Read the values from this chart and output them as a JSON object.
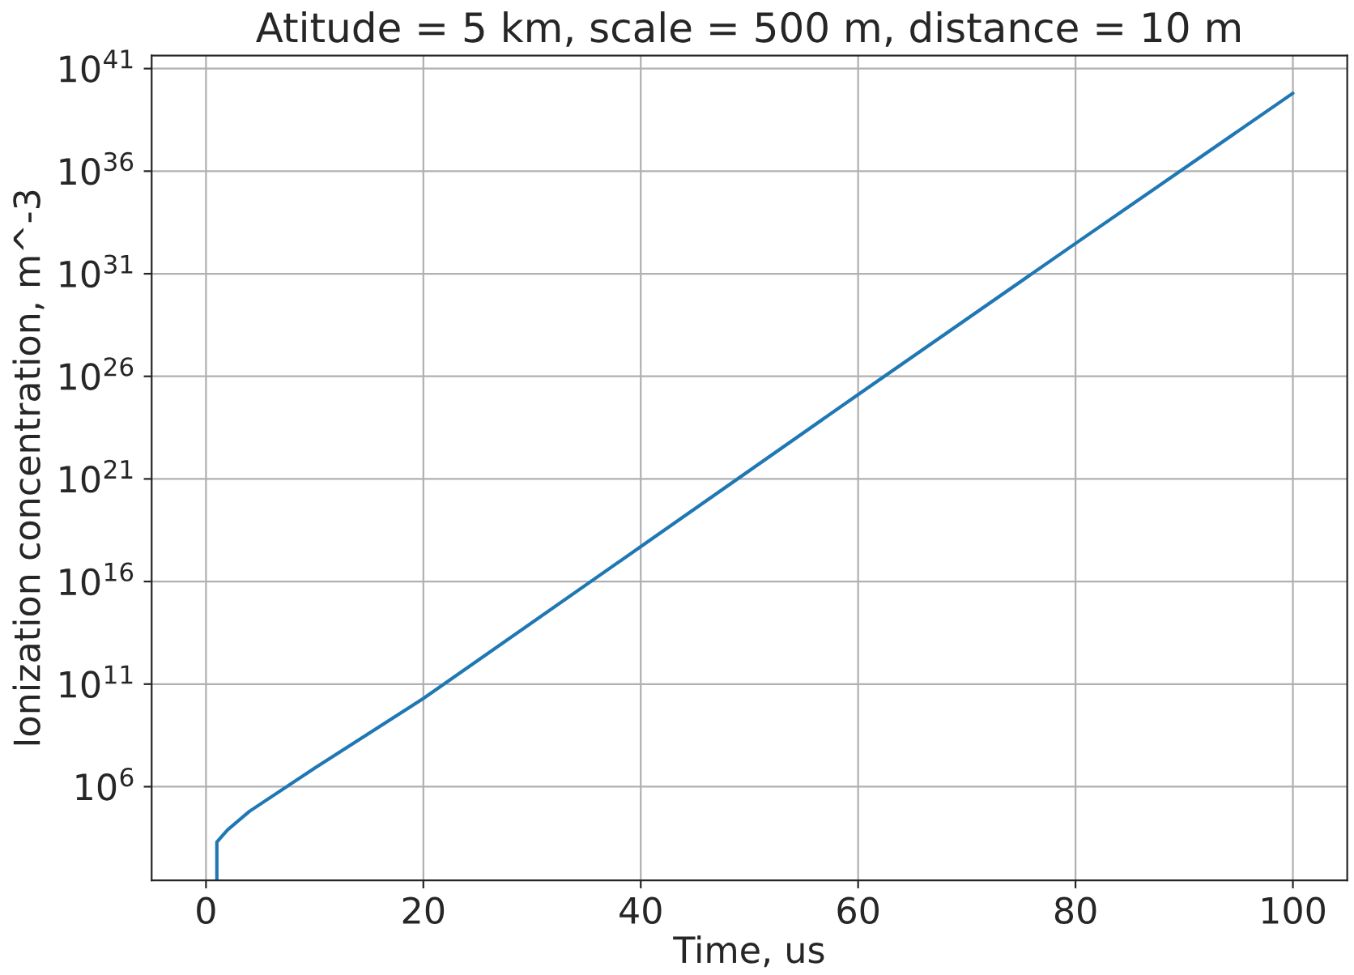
{
  "chart_data": {
    "type": "line",
    "title": "Atitude = 5 km, scale = 500 m, distance = 10 m",
    "xlabel": "Time, us",
    "ylabel": "Ionization concentration, m^-3",
    "log": "y",
    "grid": true,
    "x": [
      1,
      1,
      1.5,
      2,
      4,
      10,
      20,
      40,
      60,
      80,
      100
    ],
    "series": [
      {
        "color": "#1f77b4",
        "values": [
          30,
          2000,
          4000,
          8000,
          63000,
          8000000,
          20000000000.0,
          5e+17,
          1.3e+25,
          3e+32,
          6.3e+39
        ]
      }
    ],
    "xlim": [
      -5,
      105
    ],
    "xticks": [
      0,
      20,
      40,
      60,
      80,
      100
    ],
    "ylim": [
      27,
      4.3e+41
    ],
    "yticks": [
      {
        "value": 1000000.0,
        "label": "10$^{6}$"
      },
      {
        "value": 100000000000.0,
        "label": "10$^{11}$"
      },
      {
        "value": 1e+16,
        "label": "10$^{16}$"
      },
      {
        "value": 1e+21,
        "label": "10$^{21}$"
      },
      {
        "value": 1e+26,
        "label": "10$^{26}$"
      },
      {
        "value": 1e+31,
        "label": "10$^{31}$"
      },
      {
        "value": 1e+36,
        "label": "10$^{36}$"
      },
      {
        "value": 1e+41,
        "label": "10$^{41}$"
      }
    ]
  }
}
